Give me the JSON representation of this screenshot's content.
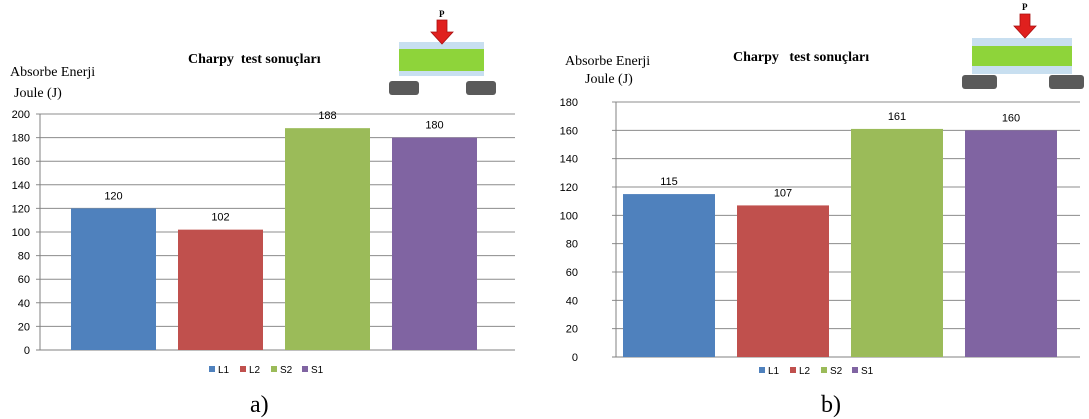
{
  "chart_data": [
    {
      "type": "bar",
      "title": "Charpy  test sonuçları",
      "ylabel_line1": "Absorbe Enerji",
      "ylabel_line2": "Joule  (J)",
      "categories": [
        "L1",
        "L2",
        "S2",
        "S1"
      ],
      "values": [
        120,
        102,
        188,
        180
      ],
      "data_labels": [
        "120",
        "102",
        "188",
        "180"
      ],
      "ylim": [
        0,
        200
      ],
      "yticks": [
        0,
        20,
        40,
        60,
        80,
        100,
        120,
        140,
        160,
        180,
        200
      ],
      "colors": [
        "#4f81bd",
        "#c0504d",
        "#9bbb59",
        "#8064a2"
      ],
      "legend": [
        "L1",
        "L2",
        "S2",
        "S1"
      ],
      "legend_position": "bottom",
      "grid": true,
      "caption": "a)",
      "force_label": "P",
      "inset": "three-point-bending"
    },
    {
      "type": "bar",
      "title": "Charpy   test sonuçları",
      "ylabel_line1": "Absorbe Enerji",
      "ylabel_line2": "Joule  (J)",
      "categories": [
        "L1",
        "L2",
        "S2",
        "S1"
      ],
      "values": [
        115,
        107,
        161,
        160
      ],
      "data_labels": [
        "115",
        "107",
        "161",
        "160"
      ],
      "ylim": [
        0,
        180
      ],
      "yticks": [
        0,
        20,
        40,
        60,
        80,
        100,
        120,
        140,
        160,
        180
      ],
      "colors": [
        "#4f81bd",
        "#c0504d",
        "#9bbb59",
        "#8064a2"
      ],
      "legend": [
        "L1",
        "L2",
        "S2",
        "S1"
      ],
      "legend_position": "bottom",
      "grid": true,
      "caption": "b)",
      "force_label": "P",
      "inset": "three-point-bending"
    }
  ]
}
